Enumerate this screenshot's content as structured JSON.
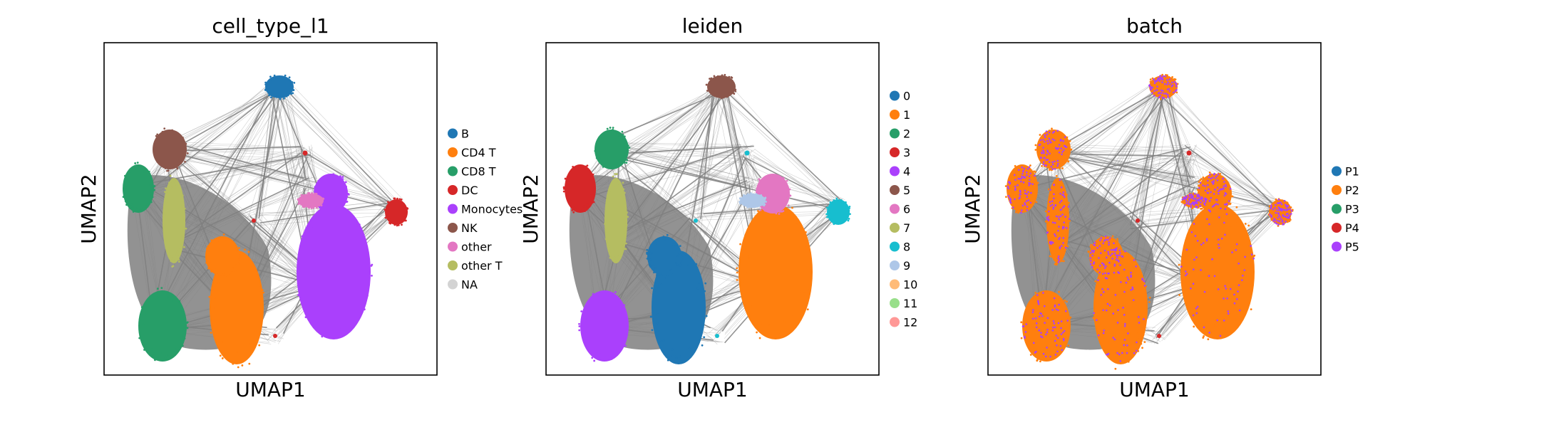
{
  "chart_data": [
    {
      "type": "scatter",
      "title": "cell_type_l1",
      "xlabel": "UMAP1",
      "ylabel": "UMAP2",
      "ticks": "none",
      "overlay": "PAGA-style grey connectivity lines between cluster centroids",
      "legend_placement": "right",
      "legend": [
        {
          "label": "B",
          "color": "#1f77b4"
        },
        {
          "label": "CD4 T",
          "color": "#ff7f0e"
        },
        {
          "label": "CD8 T",
          "color": "#279e68"
        },
        {
          "label": "DC",
          "color": "#d62728"
        },
        {
          "label": "Monocytes",
          "color": "#aa40fc"
        },
        {
          "label": "NK",
          "color": "#8c564b"
        },
        {
          "label": "other",
          "color": "#e377c2"
        },
        {
          "label": "other T",
          "color": "#b5bd61"
        },
        {
          "label": "NA",
          "color": "#d3d3d3"
        }
      ]
    },
    {
      "type": "scatter",
      "title": "leiden",
      "xlabel": "UMAP1",
      "ylabel": "UMAP2",
      "ticks": "none",
      "overlay": "PAGA-style grey connectivity lines between cluster centroids",
      "legend_placement": "right",
      "legend": [
        {
          "label": "0",
          "color": "#1f77b4"
        },
        {
          "label": "1",
          "color": "#ff7f0e"
        },
        {
          "label": "2",
          "color": "#279e68"
        },
        {
          "label": "3",
          "color": "#d62728"
        },
        {
          "label": "4",
          "color": "#aa40fc"
        },
        {
          "label": "5",
          "color": "#8c564b"
        },
        {
          "label": "6",
          "color": "#e377c2"
        },
        {
          "label": "7",
          "color": "#b5bd61"
        },
        {
          "label": "8",
          "color": "#17becf"
        },
        {
          "label": "9",
          "color": "#aec7e8"
        },
        {
          "label": "10",
          "color": "#ffbb78"
        },
        {
          "label": "11",
          "color": "#98df8a"
        },
        {
          "label": "12",
          "color": "#ff9896"
        }
      ]
    },
    {
      "type": "scatter",
      "title": "batch",
      "xlabel": "UMAP1",
      "ylabel": "UMAP2",
      "ticks": "none",
      "overlay": "PAGA-style grey connectivity lines between cluster centroids",
      "legend_placement": "right",
      "legend": [
        {
          "label": "P1",
          "color": "#1f77b4"
        },
        {
          "label": "P2",
          "color": "#ff7f0e"
        },
        {
          "label": "P3",
          "color": "#279e68"
        },
        {
          "label": "P4",
          "color": "#d62728"
        },
        {
          "label": "P5",
          "color": "#aa40fc"
        }
      ]
    }
  ]
}
